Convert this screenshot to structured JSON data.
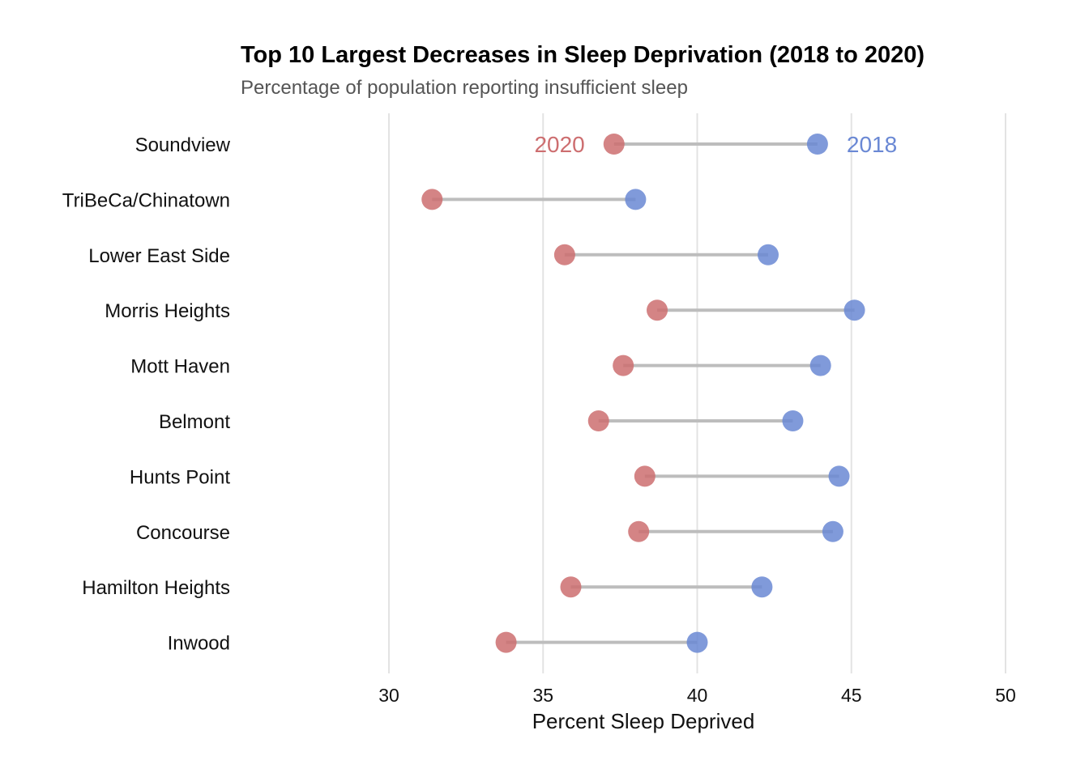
{
  "chart_data": {
    "type": "dumbbell",
    "title": "Top 10 Largest Decreases in Sleep Deprivation (2018 to 2020)",
    "subtitle": "Percentage of population reporting insufficient sleep",
    "xlabel": "Percent Sleep Deprived",
    "ylabel": "",
    "xlim": [
      30,
      50
    ],
    "xticks": [
      "30",
      "35",
      "40",
      "45",
      "50"
    ],
    "grid": "vertical",
    "categories": [
      "Soundview",
      "TriBeCa/Chinatown",
      "Lower East Side",
      "Morris Heights",
      "Mott Haven",
      "Belmont",
      "Hunts Point",
      "Concourse",
      "Hamilton Heights",
      "Inwood"
    ],
    "series": [
      {
        "name": "2020",
        "color": "#cd6e70",
        "values": [
          37.3,
          31.4,
          35.7,
          38.7,
          37.6,
          36.8,
          38.3,
          38.1,
          35.9,
          33.8
        ]
      },
      {
        "name": "2018",
        "color": "#6a88d4",
        "values": [
          43.9,
          38.0,
          42.3,
          45.1,
          44.0,
          43.1,
          44.6,
          44.4,
          42.1,
          40.0
        ]
      }
    ]
  }
}
